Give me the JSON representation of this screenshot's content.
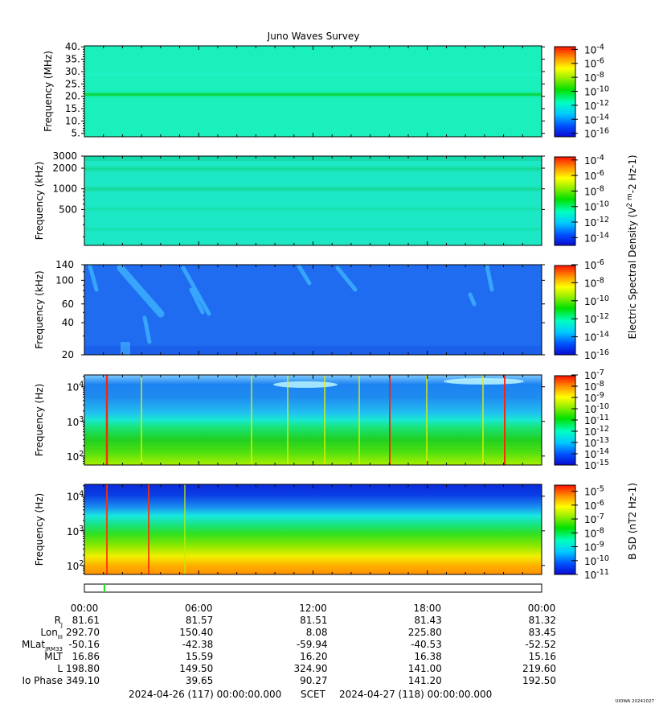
{
  "chart_data": {
    "type": "heatmap",
    "title": "Juno Waves Survey",
    "colorbar_label_e": "Electric Spectral Density (V",
    "colorbar_label_e_unit": "2 m",
    "colorbar_label_e_unit2": "-2 Hz",
    "colorbar_label_e_unit3": "-1)",
    "colorbar_label_b": "B SD (nT",
    "colorbar_label_b_unit": "2 Hz",
    "colorbar_label_b_unit2": "-1)",
    "panels": [
      {
        "ylabel": "Frequency (MHz)",
        "yticks": [
          "40.",
          "35.",
          "30.",
          "25.",
          "20.",
          "15.",
          "10.",
          "5."
        ],
        "cbar_exp": [
          "-4",
          "-6",
          "-8",
          "-10",
          "-12",
          "-14",
          "-16"
        ],
        "cbar_range": [
          -16.5,
          -3.5
        ],
        "background": "#19f0bc"
      },
      {
        "ylabel": "Frequency (kHz)",
        "yticks": [
          "3000",
          "2000",
          "1000",
          "500"
        ],
        "cbar_exp": [
          "-4",
          "-6",
          "-8",
          "-10",
          "-12",
          "-14"
        ],
        "cbar_range": [
          -15,
          -3.5
        ],
        "background": "#1de8c6"
      },
      {
        "ylabel": "Frequency (kHz)",
        "yticks": [
          "140",
          "100",
          "60",
          "40",
          "20"
        ],
        "cbar_exp": [
          "-6",
          "-8",
          "-10",
          "-12",
          "-14",
          "-16"
        ],
        "cbar_range": [
          -16,
          -6
        ],
        "background": "#1f6cf0"
      },
      {
        "ylabel": "Frequency (Hz)",
        "yticks": [
          "10",
          "10",
          "10"
        ],
        "ytick_exp": [
          "4",
          "3",
          "2"
        ],
        "cbar_exp": [
          "-7",
          "-8",
          "-9",
          "-10",
          "-11",
          "-12",
          "-13",
          "-14",
          "-15"
        ],
        "cbar_range": [
          -15,
          -7
        ]
      },
      {
        "ylabel": "Frequency (Hz)",
        "yticks": [
          "10",
          "10",
          "10"
        ],
        "ytick_exp": [
          "4",
          "3",
          "2"
        ],
        "cbar_exp": [
          "-5",
          "-6",
          "-7",
          "-8",
          "-9",
          "-10",
          "-11"
        ],
        "cbar_range": [
          -11,
          -4.5
        ]
      }
    ],
    "x_tick_labels": [
      "00:00",
      "06:00",
      "12:00",
      "18:00",
      "00:00"
    ],
    "x_range_hours": [
      0,
      24
    ],
    "ephemeris": [
      {
        "label": "R",
        "sub": "J",
        "values": [
          "81.61",
          "81.57",
          "81.51",
          "81.43",
          "81.32"
        ]
      },
      {
        "label": "Lon",
        "sub": "III",
        "values": [
          "292.70",
          "150.40",
          "8.08",
          "225.80",
          "83.45"
        ]
      },
      {
        "label": "MLat",
        "sub": "JRM33",
        "values": [
          "-50.16",
          "-42.38",
          "-59.94",
          "-40.53",
          "-52.52"
        ]
      },
      {
        "label": "MLT",
        "sub": "",
        "values": [
          "16.86",
          "15.59",
          "16.20",
          "16.38",
          "15.16"
        ]
      },
      {
        "label": "L",
        "sub": "",
        "values": [
          "198.80",
          "149.50",
          "324.90",
          "141.00",
          "219.60"
        ]
      },
      {
        "label": "Io Phase",
        "sub": "",
        "values": [
          "349.10",
          "39.65",
          "90.27",
          "141.20",
          "192.50"
        ]
      }
    ],
    "footer_start": "2024-04-26 (117) 00:00:00.000",
    "footer_mid": "SCET",
    "footer_end": "2024-04-27 (118) 00:00:00.000",
    "credit": "UIOWA 20241027",
    "availability_marker_hour": 1.05
  }
}
